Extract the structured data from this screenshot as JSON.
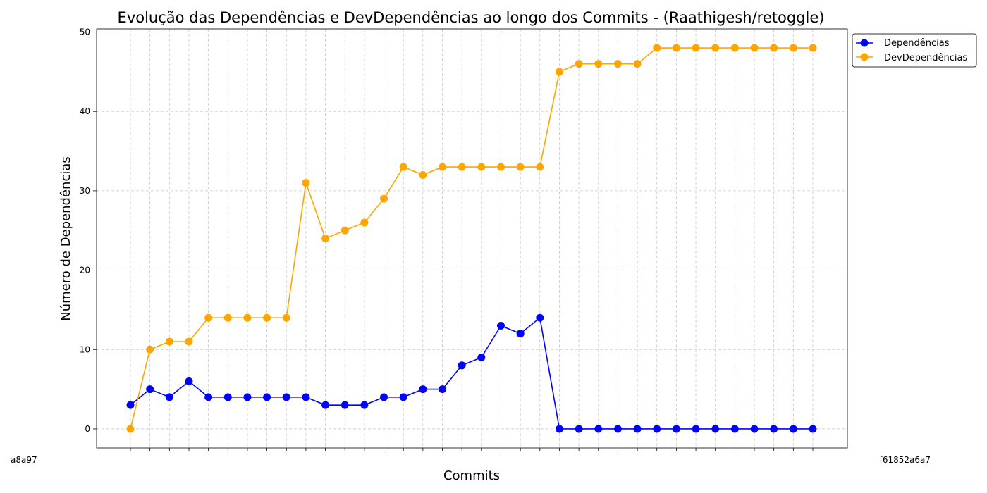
{
  "chart_data": {
    "type": "line",
    "title": "Evolução das Dependências e DevDependências ao longo dos Commits - (Raathigesh/retoggle)",
    "xlabel": "Commits",
    "ylabel": "Número de Dependências",
    "ylim": [
      -2.4,
      50.4
    ],
    "yticks": [
      0,
      10,
      20,
      30,
      40,
      50
    ],
    "grid": true,
    "grid_style": "dashed",
    "legend_position": "upper-right-outside",
    "x_first_label": "a8a97",
    "x_last_label": "f61852a6a7",
    "series": [
      {
        "name": "Dependências",
        "color": "#0000ff",
        "values": [
          3,
          5,
          4,
          6,
          4,
          4,
          4,
          4,
          4,
          4,
          3,
          3,
          3,
          4,
          4,
          5,
          5,
          8,
          9,
          13,
          12,
          14,
          0,
          0,
          0,
          0,
          0,
          0,
          0,
          0,
          0,
          0,
          0,
          0,
          0,
          0
        ]
      },
      {
        "name": "DevDependências",
        "color": "#ffa500",
        "values": [
          0,
          10,
          11,
          11,
          14,
          14,
          14,
          14,
          14,
          31,
          24,
          25,
          26,
          29,
          33,
          32,
          33,
          33,
          33,
          33,
          33,
          33,
          45,
          46,
          46,
          46,
          46,
          48,
          48,
          48,
          48,
          48,
          48,
          48,
          48,
          48
        ]
      }
    ]
  }
}
